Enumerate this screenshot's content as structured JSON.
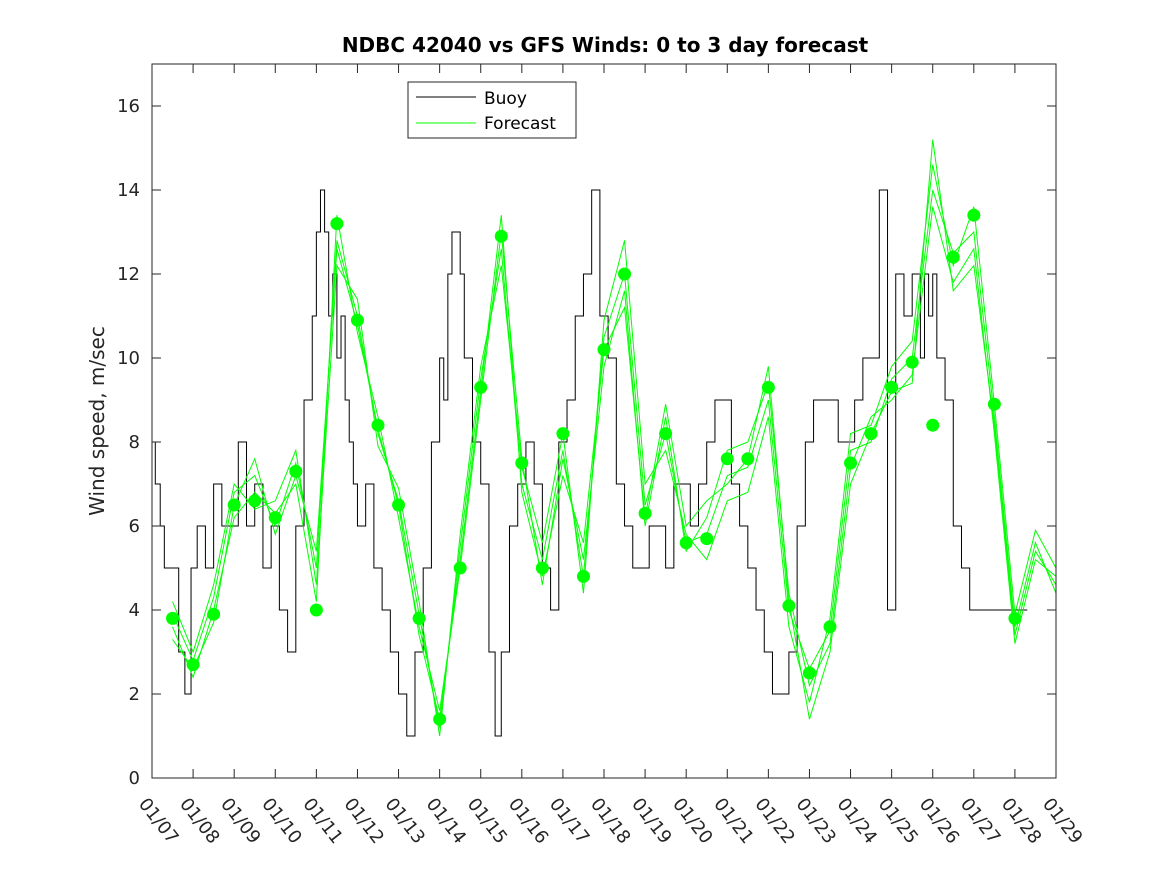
{
  "chart_data": {
    "type": "line",
    "title": "NDBC 42040 vs GFS Winds: 0 to 3 day forecast",
    "xlabel": "",
    "ylabel": "Wind speed, m/sec",
    "x_tick_labels": [
      "01/07",
      "01/08",
      "01/09",
      "01/10",
      "01/11",
      "01/12",
      "01/13",
      "01/14",
      "01/15",
      "01/16",
      "01/17",
      "01/18",
      "01/19",
      "01/20",
      "01/21",
      "01/22",
      "01/23",
      "01/24",
      "01/25",
      "01/26",
      "01/27",
      "01/28",
      "01/29"
    ],
    "xlim_days": [
      0,
      22
    ],
    "ylim": [
      0,
      17
    ],
    "y_ticks": [
      0,
      2,
      4,
      6,
      8,
      10,
      12,
      14,
      16
    ],
    "grid": false,
    "legend": {
      "position": "top-left",
      "entries": [
        {
          "label": "Buoy",
          "color": "#000000"
        },
        {
          "label": "Forecast",
          "color": "#00ff00"
        }
      ]
    },
    "buoy": {
      "name": "Buoy",
      "color": "#000000",
      "days": [
        0,
        0.08,
        0.2,
        0.3,
        0.5,
        0.65,
        0.8,
        0.95,
        1.1,
        1.3,
        1.5,
        1.7,
        1.9,
        2.1,
        2.3,
        2.5,
        2.7,
        2.9,
        3.1,
        3.3,
        3.5,
        3.7,
        3.9,
        4.0,
        4.1,
        4.2,
        4.3,
        4.4,
        4.5,
        4.6,
        4.7,
        4.8,
        4.9,
        5.0,
        5.1,
        5.2,
        5.4,
        5.6,
        5.8,
        6.0,
        6.2,
        6.4,
        6.6,
        6.8,
        7.0,
        7.1,
        7.2,
        7.3,
        7.5,
        7.6,
        7.8,
        8.0,
        8.2,
        8.35,
        8.5,
        8.7,
        8.9,
        9.1,
        9.3,
        9.5,
        9.7,
        9.9,
        10.1,
        10.3,
        10.5,
        10.7,
        10.9,
        11.1,
        11.3,
        11.5,
        11.7,
        11.9,
        12.1,
        12.3,
        12.5,
        12.7,
        12.9,
        13.1,
        13.3,
        13.5,
        13.7,
        13.9,
        14.1,
        14.3,
        14.5,
        14.7,
        14.9,
        15.1,
        15.3,
        15.5,
        15.7,
        15.9,
        16.1,
        16.3,
        16.5,
        16.7,
        16.9,
        17.1,
        17.3,
        17.5,
        17.7,
        17.9,
        18.1,
        18.3,
        18.5,
        18.7,
        18.8,
        18.9,
        19.0,
        19.1,
        19.3,
        19.5,
        19.7,
        19.9,
        20.1,
        20.3,
        20.5,
        20.7,
        20.9,
        21.1,
        21.3
      ],
      "values": [
        8,
        7,
        6,
        5,
        5,
        3,
        2,
        5,
        6,
        5,
        7,
        6,
        6,
        8,
        6,
        7,
        5,
        6,
        4,
        3,
        6,
        9,
        11,
        13,
        14,
        13,
        11,
        12,
        10,
        11,
        9,
        8,
        7,
        6,
        6,
        7,
        5,
        4,
        3,
        2,
        1,
        3,
        5,
        8,
        10,
        9,
        12,
        13,
        12,
        10,
        8,
        7,
        3,
        1,
        3,
        6,
        7,
        8,
        7,
        5,
        4,
        8,
        9,
        11,
        12,
        14,
        11,
        10,
        7,
        6,
        5,
        5,
        6,
        6,
        5,
        7,
        7,
        6,
        7,
        8,
        9,
        9,
        7,
        6,
        5,
        4,
        3,
        2,
        2,
        3,
        6,
        8,
        9,
        9,
        9,
        8,
        8,
        9,
        10,
        10,
        14,
        4,
        12,
        11,
        12,
        10,
        12,
        11,
        12,
        10,
        9,
        6,
        5,
        4,
        4,
        4,
        4,
        4,
        4,
        4,
        4
      ]
    },
    "forecast": {
      "name": "Forecast",
      "color": "#00ff00",
      "runs": [
        {
          "days": [
            0.5,
            1,
            1.5,
            2,
            2.5,
            3,
            3.5,
            4,
            4.5,
            5,
            5.5,
            6,
            6.5,
            7,
            7.5,
            8,
            8.5,
            9,
            9.5,
            10,
            10.5,
            11,
            11.5,
            12,
            12.5,
            13,
            13.5,
            14,
            14.5,
            15,
            15.5,
            16,
            16.5,
            17,
            17.5,
            18,
            18.5,
            19,
            19.5,
            20,
            20.5,
            21,
            21.5,
            22
          ],
          "values": [
            3.9,
            2.8,
            4.3,
            6.8,
            7.2,
            6.0,
            7.5,
            5.0,
            12.8,
            11.0,
            8.2,
            6.6,
            3.9,
            1.2,
            5.5,
            9.5,
            12.6,
            7.0,
            5.2,
            7.8,
            4.8,
            10.5,
            12.0,
            6.5,
            8.2,
            5.6,
            5.8,
            7.2,
            7.4,
            9.0,
            4.0,
            2.6,
            3.5,
            7.8,
            8.0,
            9.5,
            10.0,
            14.0,
            12.5,
            13.0,
            8.6,
            3.6,
            5.6,
            4.4
          ]
        },
        {
          "days": [
            0.5,
            1,
            1.5,
            2,
            2.5,
            3,
            3.5,
            4,
            4.5,
            5,
            5.5,
            6,
            6.5,
            7,
            7.5,
            8,
            8.5,
            9,
            9.5,
            10,
            10.5,
            11,
            11.5,
            12,
            12.5,
            13,
            13.5,
            14,
            14.5,
            15,
            15.5,
            16,
            16.5,
            17,
            17.5,
            18,
            18.5,
            19,
            19.5,
            20,
            20.5,
            21,
            21.5,
            22
          ],
          "values": [
            3.6,
            2.4,
            4.0,
            6.2,
            6.8,
            6.3,
            7.0,
            4.2,
            13.4,
            10.6,
            8.6,
            6.2,
            3.6,
            1.6,
            5.0,
            9.0,
            13.0,
            7.6,
            4.6,
            7.6,
            5.2,
            9.8,
            11.6,
            6.0,
            8.6,
            5.4,
            6.2,
            7.8,
            8.0,
            9.4,
            4.4,
            2.2,
            3.2,
            7.4,
            8.6,
            9.0,
            9.6,
            13.6,
            11.8,
            12.6,
            8.2,
            3.2,
            5.2,
            4.8
          ]
        },
        {
          "days": [
            0.5,
            1,
            1.5,
            2,
            2.5,
            3,
            3.5,
            4,
            4.5,
            5,
            5.5,
            6,
            6.5,
            7,
            7.5,
            8,
            8.5,
            9,
            9.5,
            10,
            10.5,
            11,
            11.5,
            12,
            12.5,
            13,
            13.5,
            14,
            14.5,
            15,
            15.5,
            16,
            16.5,
            17,
            17.5,
            18,
            18.5,
            19,
            19.5,
            20,
            20.5,
            21,
            21.5,
            22
          ],
          "values": [
            4.2,
            3.0,
            4.6,
            7.0,
            6.4,
            6.6,
            7.8,
            4.6,
            12.2,
            11.4,
            7.9,
            6.9,
            4.2,
            1.0,
            5.8,
            9.8,
            12.2,
            7.4,
            5.6,
            8.2,
            4.4,
            10.9,
            12.8,
            7.0,
            7.8,
            5.8,
            5.2,
            6.6,
            6.8,
            8.6,
            3.6,
            1.8,
            3.8,
            8.2,
            8.4,
            9.8,
            10.4,
            14.6,
            12.2,
            13.6,
            8.9,
            3.9,
            5.9,
            5.0
          ]
        },
        {
          "days": [
            0.5,
            1,
            1.5,
            2,
            2.5,
            3,
            3.5,
            4,
            4.5,
            5,
            5.5,
            6,
            6.5,
            7,
            7.5,
            8,
            8.5,
            9,
            9.5,
            10,
            10.5,
            11,
            11.5,
            12,
            12.5,
            13,
            13.5,
            14,
            14.5,
            15,
            15.5,
            16,
            16.5,
            17,
            17.5,
            18,
            18.5,
            19,
            19.5,
            20,
            20.5,
            21,
            21.5,
            22
          ],
          "values": [
            3.3,
            2.6,
            3.7,
            6.5,
            7.6,
            5.8,
            7.2,
            5.4,
            12.6,
            10.8,
            8.3,
            6.5,
            3.4,
            1.4,
            5.2,
            9.2,
            13.4,
            6.8,
            4.8,
            7.2,
            5.6,
            10.2,
            11.2,
            6.2,
            8.9,
            6.0,
            6.6,
            7.0,
            7.6,
            9.8,
            4.2,
            1.4,
            3.0,
            7.0,
            8.2,
            9.2,
            9.4,
            15.2,
            11.6,
            12.2,
            8.4,
            3.4,
            5.4,
            4.6
          ]
        }
      ]
    },
    "forecast_points": {
      "color": "#00ff00",
      "days": [
        0.5,
        1,
        1.5,
        2,
        2.5,
        3,
        3.5,
        4,
        4.5,
        5,
        5.5,
        6,
        6.5,
        7,
        7.5,
        8,
        8.5,
        9,
        9.5,
        10,
        10.5,
        11,
        11.5,
        12,
        12.5,
        13,
        13.5,
        14,
        14.5,
        15,
        15.5,
        16,
        16.5,
        17,
        17.5,
        18,
        18.5,
        19,
        19.5,
        20,
        20.5,
        21,
        21.5
      ],
      "values": [
        3.8,
        2.7,
        3.9,
        6.5,
        6.6,
        6.2,
        7.3,
        4.0,
        13.2,
        10.9,
        8.4,
        6.5,
        3.8,
        1.4,
        5.0,
        9.3,
        12.9,
        7.5,
        5.0,
        8.2,
        4.8,
        10.2,
        12.0,
        6.3,
        8.2,
        5.6,
        5.7,
        7.6,
        7.6,
        9.3,
        4.1,
        2.5,
        3.6,
        7.5,
        8.2,
        9.3,
        9.9,
        8.4,
        12.4,
        13.4,
        8.9,
        3.8,
        null
      ]
    }
  }
}
